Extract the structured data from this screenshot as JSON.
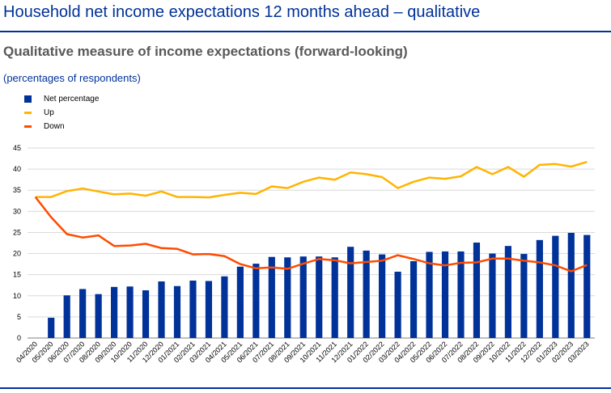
{
  "header": {
    "title": "Household net income expectations 12 months ahead – qualitative",
    "subtitle": "Qualitative measure of income expectations (forward-looking)",
    "units": "(percentages of respondents)"
  },
  "colors": {
    "net": "#003299",
    "up": "#FFB400",
    "down": "#FF4B00",
    "title": "#003299",
    "subtitle": "#595959"
  },
  "chart_data": {
    "type": "bar",
    "categories": [
      "04/2020",
      "05/2020",
      "06/2020",
      "07/2020",
      "08/2020",
      "09/2020",
      "10/2020",
      "11/2020",
      "12/2020",
      "01/2021",
      "02/2021",
      "03/2021",
      "04/2021",
      "05/2021",
      "06/2021",
      "07/2021",
      "08/2021",
      "09/2021",
      "10/2021",
      "11/2021",
      "12/2021",
      "01/2022",
      "02/2022",
      "03/2022",
      "04/2022",
      "05/2022",
      "06/2022",
      "07/2022",
      "08/2022",
      "09/2022",
      "10/2022",
      "11/2022",
      "12/2022",
      "01/2023",
      "02/2023",
      "03/2023"
    ],
    "series": [
      {
        "name": "Net percentage",
        "type": "bar",
        "color": "#003299",
        "values": [
          null,
          4.8,
          10.1,
          11.6,
          10.4,
          12.1,
          12.2,
          11.3,
          13.4,
          12.3,
          13.6,
          13.5,
          14.6,
          16.9,
          17.6,
          19.2,
          19.1,
          19.3,
          19.3,
          19.1,
          21.6,
          20.7,
          19.8,
          15.7,
          18.2,
          20.4,
          20.5,
          20.5,
          22.6,
          20.0,
          21.8,
          19.9,
          23.2,
          24.2,
          24.9,
          24.4
        ]
      },
      {
        "name": "Up",
        "type": "line",
        "color": "#FFB400",
        "values": [
          33.4,
          33.4,
          34.8,
          35.4,
          34.7,
          34.0,
          34.2,
          33.7,
          34.7,
          33.4,
          33.4,
          33.3,
          33.9,
          34.4,
          34.1,
          35.9,
          35.5,
          37.0,
          38.0,
          37.5,
          39.2,
          38.8,
          38.1,
          35.5,
          37.0,
          38.0,
          37.7,
          38.3,
          40.5,
          38.8,
          40.5,
          38.2,
          41.0,
          41.2,
          40.6,
          41.7
        ]
      },
      {
        "name": "Down",
        "type": "line",
        "color": "#FF4B00",
        "values": [
          33.4,
          28.6,
          24.6,
          23.8,
          24.3,
          21.8,
          21.9,
          22.3,
          21.3,
          21.1,
          19.8,
          19.9,
          19.4,
          17.5,
          16.5,
          16.7,
          16.4,
          17.6,
          18.7,
          18.4,
          17.7,
          18.0,
          18.3,
          19.6,
          18.7,
          17.7,
          17.2,
          17.8,
          17.9,
          18.8,
          18.8,
          18.3,
          17.9,
          17.2,
          15.8,
          17.3
        ]
      }
    ],
    "ylim": [
      0,
      45
    ],
    "yticks": [
      0,
      5,
      10,
      15,
      20,
      25,
      30,
      35,
      40,
      45
    ],
    "grid": true,
    "legend": "top-left"
  }
}
